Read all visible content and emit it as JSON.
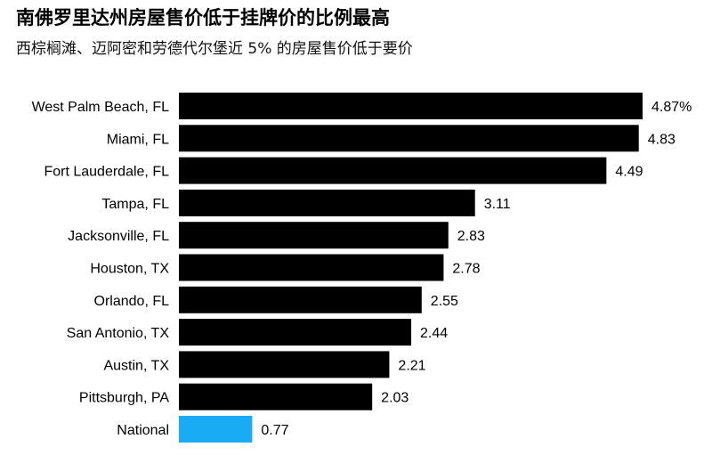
{
  "title": "南佛罗里达州房屋售价低于挂牌价的比例最高",
  "subtitle": "西棕榈滩、迈阿密和劳德代尔堡近 5% 的房屋售价低于要价",
  "colors": {
    "bar": "#000000",
    "highlight": "#1AABF5"
  },
  "chart_data": {
    "type": "bar",
    "orientation": "horizontal",
    "categories": [
      "West Palm Beach, FL",
      "Miami, FL",
      "Fort Lauderdale, FL",
      "Tampa, FL",
      "Jacksonville, FL",
      "Houston, TX",
      "Orlando, FL",
      "San Antonio, TX",
      "Austin, TX",
      "Pittsburgh, PA",
      "National"
    ],
    "values": [
      4.87,
      4.83,
      4.49,
      3.11,
      2.83,
      2.78,
      2.55,
      2.44,
      2.21,
      2.03,
      0.77
    ],
    "value_labels": [
      "4.87%",
      "4.83",
      "4.49",
      "3.11",
      "2.83",
      "2.78",
      "2.55",
      "2.44",
      "2.21",
      "2.03",
      "0.77"
    ],
    "highlight": [
      "National"
    ],
    "title": "南佛罗里达州房屋售价低于挂牌价的比例最高",
    "subtitle": "西棕榈滩、迈阿密和劳德代尔堡近 5% 的房屋售价低于要价",
    "xlabel": "",
    "ylabel": "",
    "xlim": [
      0,
      4.87
    ],
    "grid": false,
    "legend": "none"
  }
}
